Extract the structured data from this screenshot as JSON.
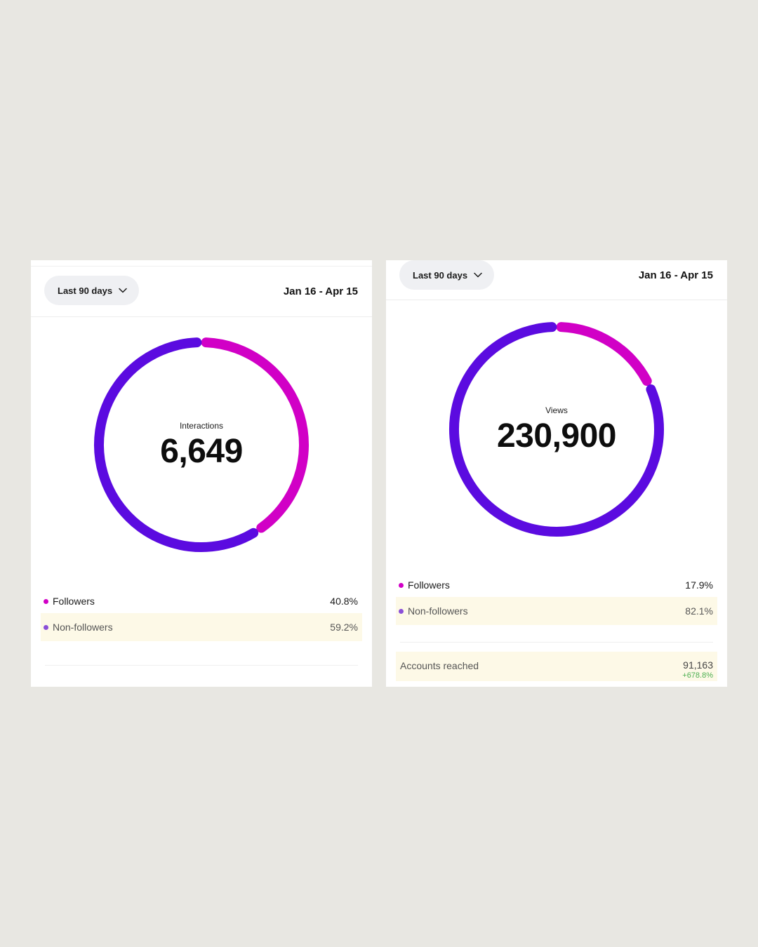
{
  "panels": [
    {
      "range_label": "Last 90 days",
      "date_range": "Jan 16 - Apr 15",
      "metric_label": "Interactions",
      "metric_value": "6,649",
      "legend": [
        {
          "label": "Followers",
          "value": "40.8%"
        },
        {
          "label": "Non-followers",
          "value": "59.2%"
        }
      ]
    },
    {
      "range_label": "Last 90 days",
      "date_range": "Jan 16 - Apr 15",
      "metric_label": "Views",
      "metric_value": "230,900",
      "legend": [
        {
          "label": "Followers",
          "value": "17.9%"
        },
        {
          "label": "Non-followers",
          "value": "82.1%"
        }
      ],
      "accounts_reached": {
        "label": "Accounts reached",
        "value": "91,163",
        "delta": "+678.8%"
      }
    }
  ],
  "chart_data": [
    {
      "type": "pie",
      "categories": [
        "Followers",
        "Non-followers"
      ],
      "values": [
        40.8,
        59.2
      ],
      "colors": [
        "#d100c6",
        "#5b0be0"
      ],
      "title": "Interactions"
    },
    {
      "type": "pie",
      "categories": [
        "Followers",
        "Non-followers"
      ],
      "values": [
        17.9,
        82.1
      ],
      "colors": [
        "#d100c6",
        "#5b0be0"
      ],
      "title": "Views"
    }
  ],
  "colors": {
    "followers": "#d100c6",
    "non_followers": "#5b0be0",
    "followers_dot": "#d100c6",
    "non_followers_dot": "#8a4fd8",
    "highlight": "#fdf9e7",
    "positive": "#4caf50"
  },
  "icons": {
    "dropdown": "chevron-down-icon"
  }
}
